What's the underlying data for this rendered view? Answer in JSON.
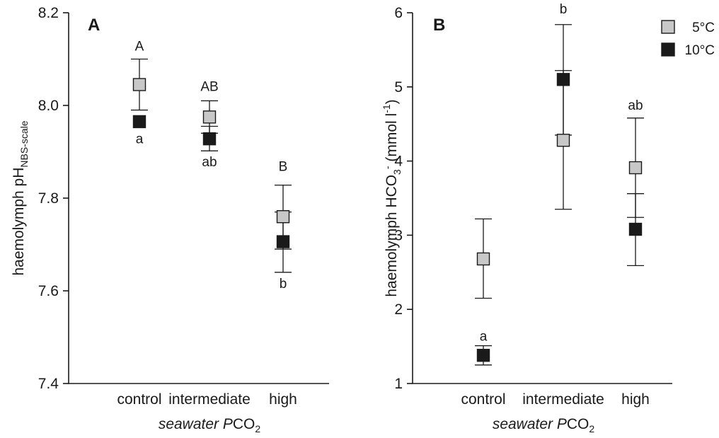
{
  "chart_data": [
    {
      "type": "scatter",
      "panel": "A",
      "categories": [
        "control",
        "intermediate",
        "high"
      ],
      "xlabel_prefix": "seawater ",
      "xlabel_italic": "P",
      "xlabel_chem": "CO",
      "xlabel_sub": "2",
      "ylabel_main": "haemolymph pH",
      "ylabel_sub": "NBS-scale",
      "ylim": [
        7.4,
        8.2
      ],
      "yticks": [
        "7.4",
        "7.6",
        "7.8",
        "8.0",
        "8.2"
      ],
      "ytick_values": [
        7.4,
        7.6,
        7.8,
        8.0,
        8.2
      ],
      "series": [
        {
          "name": "5°C",
          "color": "#c8c8c8",
          "values": [
            8.045,
            7.975,
            7.76
          ],
          "err_low": [
            7.99,
            7.94,
            7.69
          ],
          "err_high": [
            8.1,
            8.01,
            7.828
          ]
        },
        {
          "name": "10°C",
          "color": "#1a1a1a",
          "values": [
            7.965,
            7.928,
            7.706
          ],
          "err_low": [
            7.965,
            7.902,
            7.64
          ],
          "err_high": [
            7.965,
            7.955,
            7.77
          ]
        }
      ],
      "annotations_upper": [
        "A",
        "AB",
        "B"
      ],
      "annotations_lower": [
        "a",
        "ab",
        "b"
      ]
    },
    {
      "type": "scatter",
      "panel": "B",
      "categories": [
        "control",
        "intermediate",
        "high"
      ],
      "xlabel_prefix": "seawater ",
      "xlabel_italic": "P",
      "xlabel_chem": "CO",
      "xlabel_sub": "2",
      "ylabel_main": "haemolymph HCO",
      "ylabel_sub": "3",
      "ylabel_sup": "-",
      "ylabel_unit": " (mmol l",
      "ylabel_unit_sup": "-1",
      "ylabel_close": ")",
      "ylim": [
        1,
        6
      ],
      "yticks": [
        "1",
        "2",
        "3",
        "4",
        "5",
        "6"
      ],
      "ytick_values": [
        1,
        2,
        3,
        4,
        5,
        6
      ],
      "series": [
        {
          "name": "5°C",
          "color": "#c8c8c8",
          "values": [
            2.68,
            4.28,
            3.91
          ],
          "err_low": [
            2.15,
            3.35,
            3.24
          ],
          "err_high": [
            3.22,
            5.22,
            4.58
          ]
        },
        {
          "name": "10°C",
          "color": "#1a1a1a",
          "values": [
            1.38,
            5.1,
            3.08
          ],
          "err_low": [
            1.25,
            4.35,
            2.59
          ],
          "err_high": [
            1.51,
            5.84,
            3.56
          ]
        }
      ],
      "annotations_upper": [
        "",
        "b",
        "ab"
      ],
      "annotations_lower": [
        "a",
        "",
        ""
      ],
      "legend": [
        "5°C",
        "10°C"
      ]
    }
  ]
}
